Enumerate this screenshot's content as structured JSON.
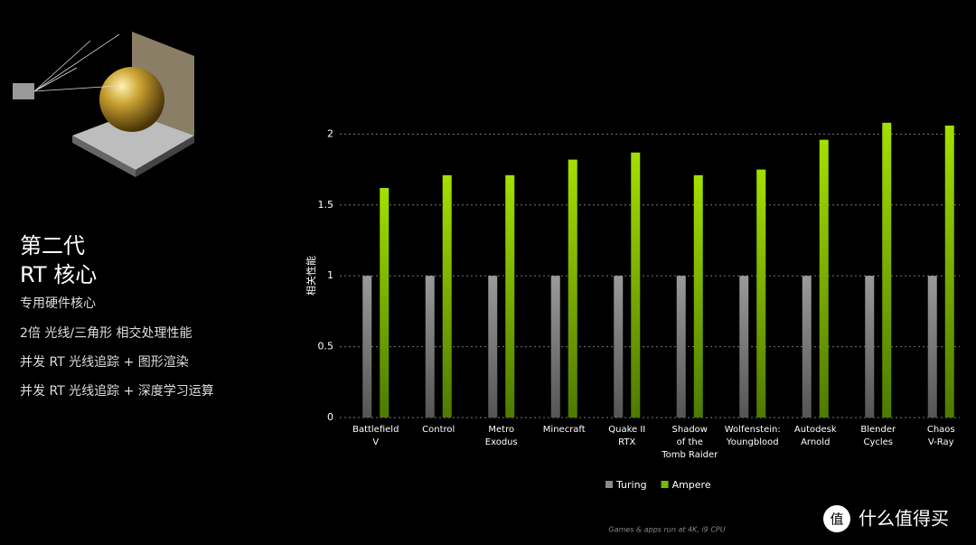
{
  "slide": {
    "title_lines": [
      "第二代",
      "RT 核心"
    ],
    "bullets": [
      "专用硬件核心",
      "2倍 光线/三角形 相交处理性能",
      "并发 RT 光线追踪 + 图形渲染",
      "并发 RT 光线追踪 + 深度学习运算"
    ],
    "footnote": "Games & apps run at 4K, i9 CPU",
    "watermark": "什么值得买",
    "watermark_icon": "值"
  },
  "chart_data": {
    "type": "bar",
    "y_label": "相关性能",
    "categories": [
      "Battlefield\nV",
      "Control",
      "Metro\nExodus",
      "Minecraft",
      "Quake II\nRTX",
      "Shadow\nof the\nTomb Raider",
      "Wolfenstein:\nYoungblood",
      "Autodesk\nArnold",
      "Blender\nCycles",
      "Chaos\nV-Ray"
    ],
    "series": [
      {
        "name": "Turing",
        "color": "#8a8a8a",
        "values": [
          1,
          1,
          1,
          1,
          1,
          1,
          1,
          1,
          1,
          1
        ]
      },
      {
        "name": "Ampere",
        "color": "#76b900",
        "values": [
          1.62,
          1.71,
          1.71,
          1.82,
          1.87,
          1.71,
          1.75,
          1.96,
          2.08,
          2.06
        ]
      }
    ],
    "ylim": [
      0,
      2.2
    ],
    "yticks": [
      0,
      0.5,
      1,
      1.5,
      2
    ],
    "grid": true
  }
}
